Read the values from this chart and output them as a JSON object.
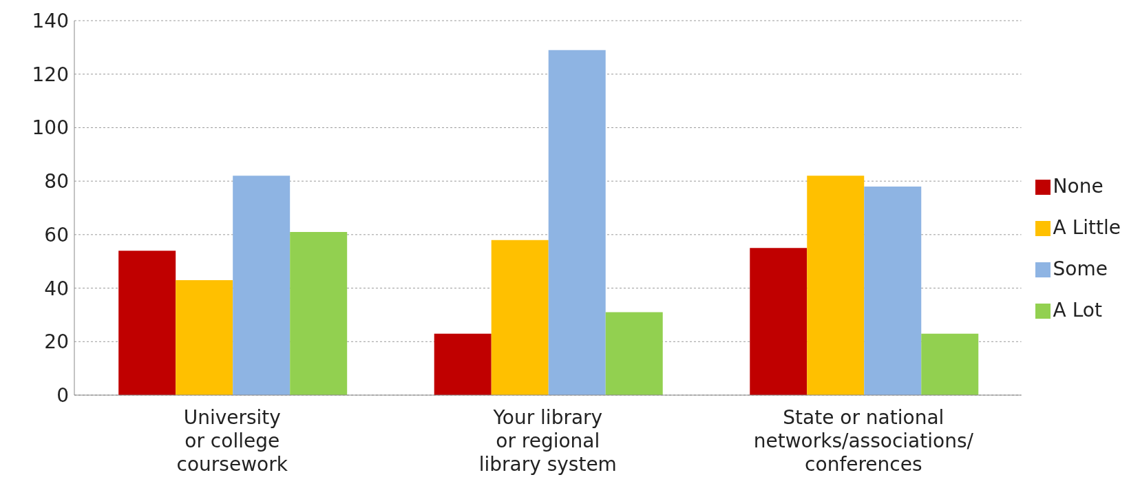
{
  "chart_data": {
    "type": "bar",
    "categories": [
      "University\nor college\ncoursework",
      "Your library\nor regional\nlibrary system",
      "State or national\nnetworks/associations/\nconferences"
    ],
    "series": [
      {
        "name": "None",
        "color": "#c00000",
        "values": [
          54,
          23,
          55
        ]
      },
      {
        "name": "A Little",
        "color": "#ffc000",
        "values": [
          43,
          58,
          82
        ]
      },
      {
        "name": "Some",
        "color": "#8eb4e3",
        "values": [
          82,
          129,
          78
        ]
      },
      {
        "name": "A Lot",
        "color": "#92d050",
        "values": [
          61,
          31,
          23
        ]
      }
    ],
    "ylim": [
      0,
      140
    ],
    "yticks": [
      0,
      20,
      40,
      60,
      80,
      100,
      120,
      140
    ],
    "grid": "y",
    "legend": "right"
  }
}
